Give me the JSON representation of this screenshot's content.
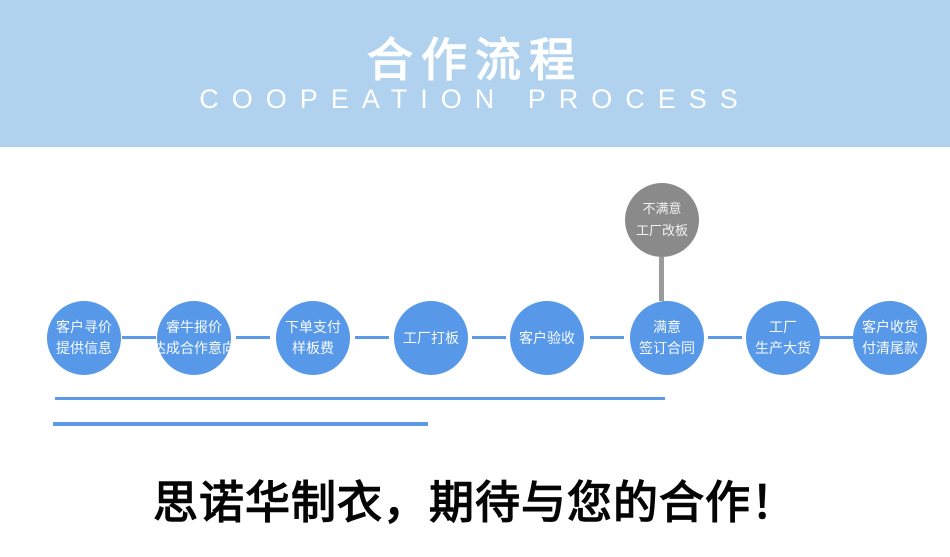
{
  "banner": {
    "title": "合作流程",
    "subtitle": "COOPEATION PROCESS",
    "background_color": "#b0d2ee",
    "text_color": "#ffffff"
  },
  "flow": {
    "rework_node": {
      "lines": [
        "不满意",
        "工厂改板"
      ],
      "color": "#8a8a8a"
    },
    "node_color": "#5798e8",
    "connector_color": "#5a9ae8",
    "steps": [
      {
        "lines": [
          "客户寻价",
          "提供信息"
        ]
      },
      {
        "lines": [
          "睿牛报价",
          "达成合作意向"
        ]
      },
      {
        "lines": [
          "下单支付",
          "样板费"
        ]
      },
      {
        "lines": [
          "工厂打板"
        ]
      },
      {
        "lines": [
          "客户验收"
        ]
      },
      {
        "lines": [
          "满意",
          "签订合同"
        ]
      },
      {
        "lines": [
          "工厂",
          "生产大货"
        ]
      },
      {
        "lines": [
          "客户收货",
          "付清尾款"
        ]
      }
    ]
  },
  "underlines": {
    "color": "#5a9ae8"
  },
  "footer": {
    "slogan": "思诺华制衣，期待与您的合作！"
  }
}
